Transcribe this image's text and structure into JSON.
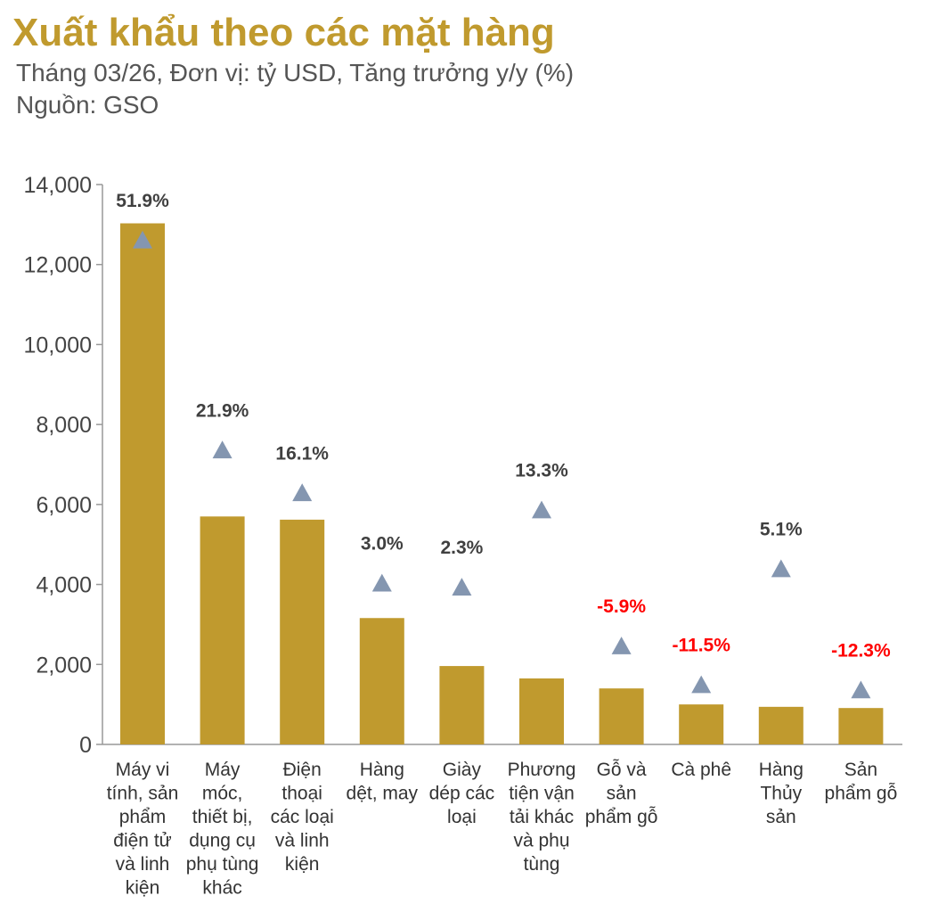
{
  "header": {
    "title": "Xuất khẩu theo các mặt hàng",
    "subtitle": "Tháng 03/26, Đơn vị: tỷ USD, Tăng trưởng y/y (%)",
    "source": "Nguồn: GSO"
  },
  "colors": {
    "bar": "#C09A2E",
    "marker": "#8496B0",
    "positive_label": "#404040",
    "negative_label": "#FF0000",
    "axis": "#999999"
  },
  "chart_data": {
    "type": "bar",
    "title": "Xuất khẩu theo các mặt hàng",
    "ylim": [
      0,
      14000
    ],
    "yticks": [
      "0",
      "2,000",
      "4,000",
      "6,000",
      "8,000",
      "10,000",
      "12,000",
      "14,000"
    ],
    "ytick_values": [
      0,
      2000,
      4000,
      6000,
      8000,
      10000,
      12000,
      14000
    ],
    "grid": false,
    "categories": [
      [
        "Máy vi",
        "tính, sản",
        "phẩm",
        "điện tử",
        "và linh",
        "kiện"
      ],
      [
        "Máy",
        "móc,",
        "thiết bị,",
        "dụng cụ",
        "phụ tùng",
        "khác"
      ],
      [
        "Điện",
        "thoại",
        "các loại",
        "và linh",
        "kiện"
      ],
      [
        "Hàng",
        "dệt, may"
      ],
      [
        "Giày",
        "dép các",
        "loại"
      ],
      [
        "Phương",
        "tiện vận",
        "tải khác",
        "và phụ",
        "tùng"
      ],
      [
        "Gỗ và",
        "sản",
        "phẩm gỗ"
      ],
      [
        "Cà phê"
      ],
      [
        "Hàng",
        "Thủy",
        "sản"
      ],
      [
        "Sản",
        "phẩm gỗ"
      ]
    ],
    "series": [
      {
        "type": "bar",
        "values": [
          13030,
          5700,
          5620,
          3160,
          1960,
          1650,
          1400,
          1000,
          940,
          910
        ]
      },
      {
        "type": "scatter",
        "marker": "triangle",
        "values": [
          12600,
          7350,
          6280,
          4020,
          3920,
          5850,
          2450,
          1480,
          4380,
          1350
        ],
        "labels": [
          "51.9%",
          "21.9%",
          "16.1%",
          "3.0%",
          "2.3%",
          "13.3%",
          "-5.9%",
          "-11.5%",
          "5.1%",
          "-12.3%"
        ],
        "growth": [
          51.9,
          21.9,
          16.1,
          3.0,
          2.3,
          13.3,
          -5.9,
          -11.5,
          5.1,
          -12.3
        ]
      }
    ]
  }
}
